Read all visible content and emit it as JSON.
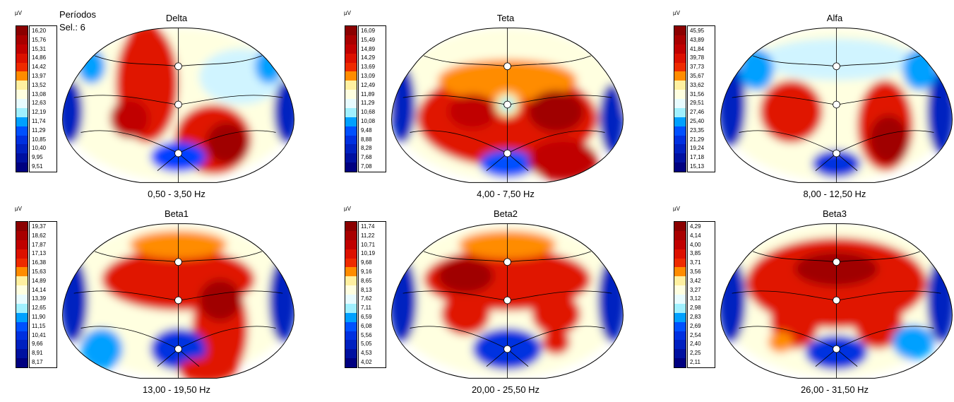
{
  "header": {
    "line1": "Períodos",
    "line2": "Sel.: 6"
  },
  "unit": "µV",
  "scale_colors": [
    "#8b0000",
    "#a80000",
    "#c00000",
    "#dc1000",
    "#ee2a00",
    "#ff8c00",
    "#fff0a0",
    "#ffffe0",
    "#e8fcff",
    "#a0f0ff",
    "#00a0ff",
    "#0050ff",
    "#0030e0",
    "#0020c0",
    "#0010a0",
    "#000080"
  ],
  "panels": [
    {
      "title": "Delta",
      "freq": "0,50 - 3,50 Hz",
      "ticks": [
        "16,20",
        "15,76",
        "15,31",
        "14,86",
        "14,42",
        "13,97",
        "13,52",
        "13,08",
        "12,63",
        "12,19",
        "11,74",
        "11,29",
        "10,85",
        "10,40",
        "9,95",
        "9,51"
      ]
    },
    {
      "title": "Teta",
      "freq": "4,00 - 7,50 Hz",
      "ticks": [
        "16,09",
        "15,49",
        "14,89",
        "14,29",
        "13,69",
        "13,09",
        "12,49",
        "11,89",
        "11,29",
        "10,68",
        "10,08",
        "9,48",
        "8,88",
        "8,28",
        "7,68",
        "7,08"
      ]
    },
    {
      "title": "Alfa",
      "freq": "8,00 - 12,50 Hz",
      "ticks": [
        "45,95",
        "43,89",
        "41,84",
        "39,78",
        "37,73",
        "35,67",
        "33,62",
        "31,56",
        "29,51",
        "27,46",
        "25,40",
        "23,35",
        "21,29",
        "19,24",
        "17,18",
        "15,13"
      ]
    },
    {
      "title": "Beta1",
      "freq": "13,00 - 19,50 Hz",
      "ticks": [
        "19,37",
        "18,62",
        "17,87",
        "17,13",
        "16,38",
        "15,63",
        "14,89",
        "14,14",
        "13,39",
        "12,65",
        "11,90",
        "11,15",
        "10,41",
        "9,66",
        "8,91",
        "8,17"
      ]
    },
    {
      "title": "Beta2",
      "freq": "20,00 - 25,50 Hz",
      "ticks": [
        "11,74",
        "11,22",
        "10,71",
        "10,19",
        "9,68",
        "9,16",
        "8,65",
        "8,13",
        "7,62",
        "7,11",
        "6,59",
        "6,08",
        "5,56",
        "5,05",
        "4,53",
        "4,02"
      ]
    },
    {
      "title": "Beta3",
      "freq": "26,00 - 31,50 Hz",
      "ticks": [
        "4,29",
        "4,14",
        "4,00",
        "3,85",
        "3,71",
        "3,56",
        "3,42",
        "3,27",
        "3,12",
        "2,98",
        "2,83",
        "2,69",
        "2,54",
        "2,40",
        "2,25",
        "2,11"
      ]
    }
  ]
}
